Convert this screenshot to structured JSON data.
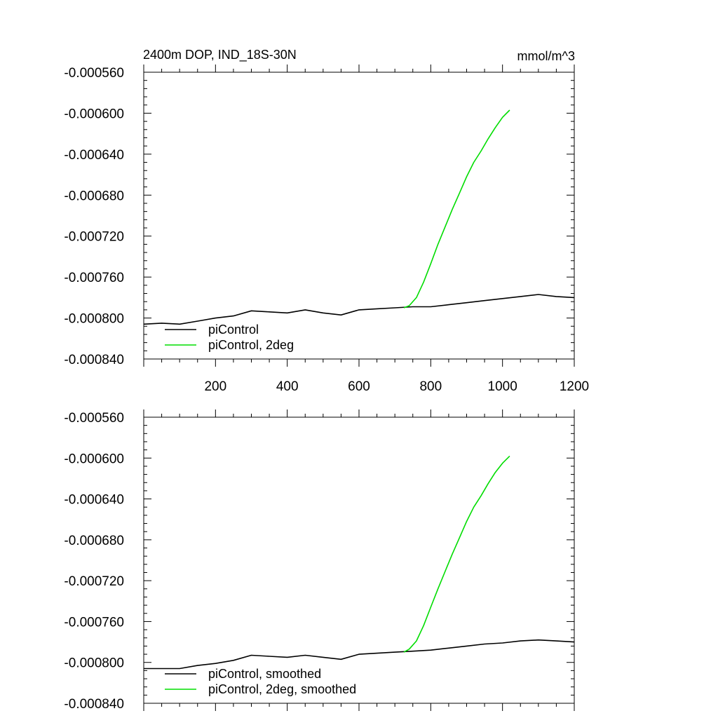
{
  "header": {
    "title": "2400m DOP, IND_18S-30N",
    "units": "mmol/m^3"
  },
  "chart_data": [
    {
      "type": "line",
      "title": "2400m DOP, IND_18S-30N",
      "units": "mmol/m^3",
      "xlim": [
        0,
        1200
      ],
      "ylim": [
        -0.00084,
        -0.00056
      ],
      "x_tick_labels": [
        "200",
        "400",
        "600",
        "800",
        "1000",
        "1200"
      ],
      "y_tick_labels": [
        "-0.000560",
        "-0.000600",
        "-0.000640",
        "-0.000680",
        "-0.000720",
        "-0.000760",
        "-0.000800",
        "-0.000840"
      ],
      "legend_position": "bottom-left",
      "series": [
        {
          "name": "piControl",
          "color": "#000000",
          "x": [
            0,
            50,
            100,
            150,
            200,
            250,
            300,
            350,
            400,
            450,
            500,
            550,
            600,
            650,
            700,
            750,
            800,
            850,
            900,
            950,
            1000,
            1050,
            1100,
            1150,
            1200
          ],
          "y": [
            -0.000806,
            -0.000805,
            -0.000806,
            -0.000803,
            -0.0008,
            -0.000798,
            -0.000793,
            -0.000794,
            -0.000795,
            -0.000792,
            -0.000795,
            -0.000797,
            -0.000792,
            -0.000791,
            -0.00079,
            -0.000789,
            -0.000789,
            -0.000787,
            -0.000785,
            -0.000783,
            -0.000781,
            -0.000779,
            -0.000777,
            -0.000779,
            -0.00078
          ]
        },
        {
          "name": "piControl, 2deg",
          "color": "#00dd00",
          "x": [
            725,
            740,
            760,
            780,
            800,
            820,
            840,
            860,
            880,
            900,
            920,
            940,
            960,
            980,
            1000,
            1020
          ],
          "y": [
            -0.00079,
            -0.000788,
            -0.00078,
            -0.000765,
            -0.000747,
            -0.000728,
            -0.000711,
            -0.000694,
            -0.000678,
            -0.000662,
            -0.000648,
            -0.000637,
            -0.000625,
            -0.000614,
            -0.000604,
            -0.000597
          ]
        }
      ]
    },
    {
      "type": "line",
      "xlim": [
        0,
        1200
      ],
      "ylim": [
        -0.00084,
        -0.00056
      ],
      "y_tick_labels": [
        "-0.000560",
        "-0.000600",
        "-0.000640",
        "-0.000680",
        "-0.000720",
        "-0.000760",
        "-0.000800",
        "-0.000840"
      ],
      "legend_position": "bottom-left",
      "series": [
        {
          "name": "piControl, smoothed",
          "color": "#000000",
          "x": [
            0,
            50,
            100,
            150,
            200,
            250,
            300,
            350,
            400,
            450,
            500,
            550,
            600,
            650,
            700,
            750,
            800,
            850,
            900,
            950,
            1000,
            1050,
            1100,
            1150,
            1200
          ],
          "y": [
            -0.000806,
            -0.000806,
            -0.000806,
            -0.000803,
            -0.000801,
            -0.000798,
            -0.000793,
            -0.000794,
            -0.000795,
            -0.000793,
            -0.000795,
            -0.000797,
            -0.000792,
            -0.000791,
            -0.00079,
            -0.000789,
            -0.000788,
            -0.000786,
            -0.000784,
            -0.000782,
            -0.000781,
            -0.000779,
            -0.000778,
            -0.000779,
            -0.00078
          ]
        },
        {
          "name": "piControl, 2deg, smoothed",
          "color": "#00dd00",
          "x": [
            725,
            740,
            760,
            780,
            800,
            820,
            840,
            860,
            880,
            900,
            920,
            940,
            960,
            980,
            1000,
            1020
          ],
          "y": [
            -0.00079,
            -0.000787,
            -0.000779,
            -0.000764,
            -0.000746,
            -0.000728,
            -0.000711,
            -0.000694,
            -0.000678,
            -0.000662,
            -0.000648,
            -0.000637,
            -0.000625,
            -0.000614,
            -0.000605,
            -0.000598
          ]
        }
      ]
    }
  ]
}
